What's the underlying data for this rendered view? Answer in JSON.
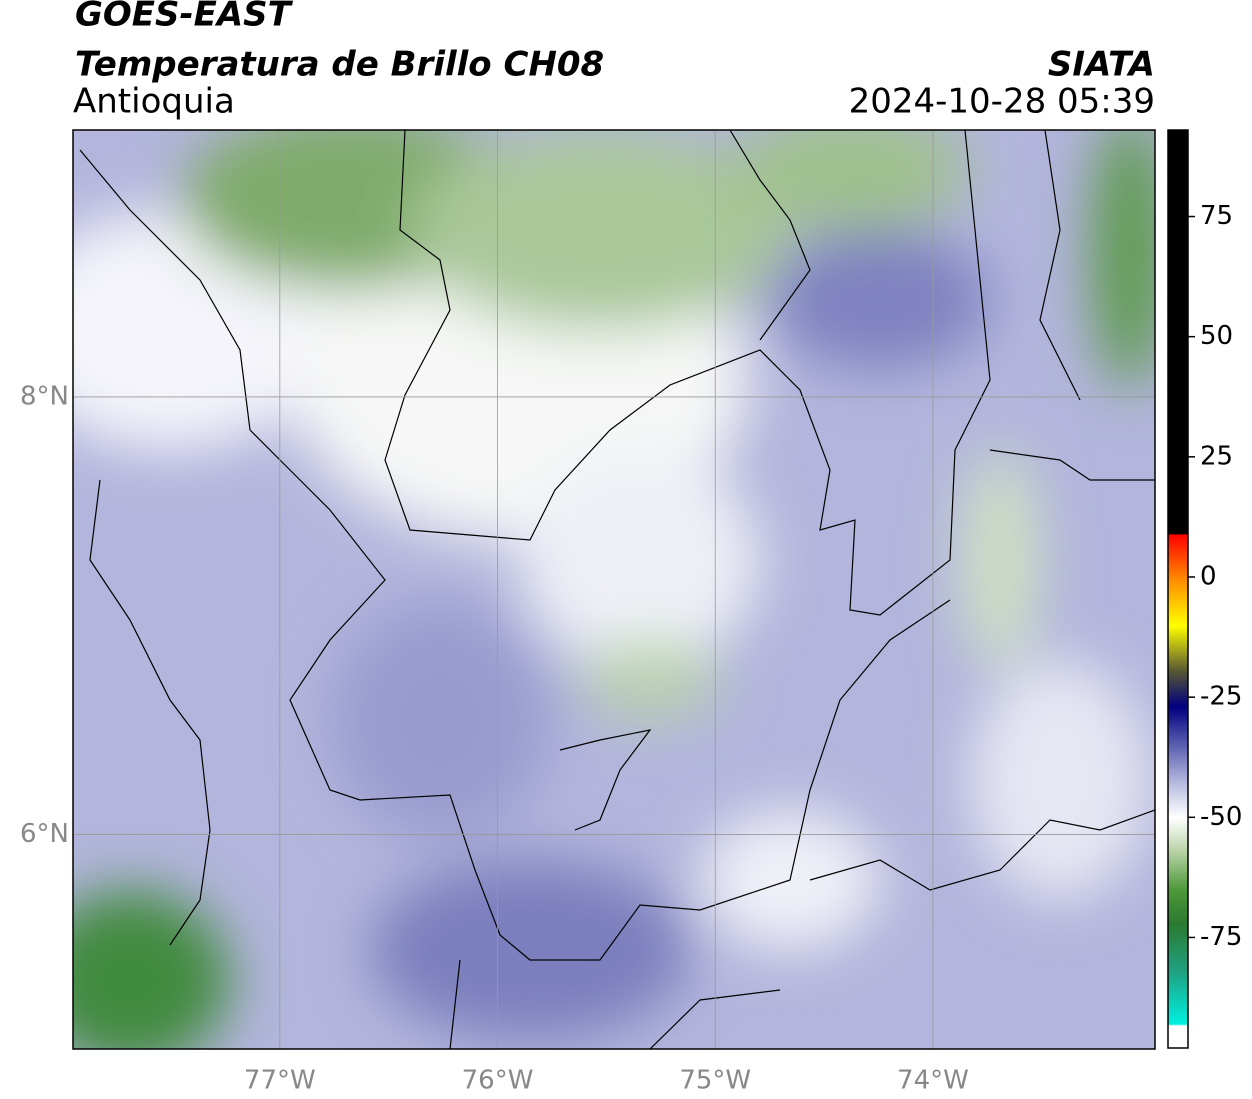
{
  "header": {
    "title": "GOES-EAST",
    "subtitle": "Temperatura de Brillo CH08",
    "region": "Antioquia",
    "source": "SIATA",
    "datetime": "2024-10-28 05:39"
  },
  "map": {
    "xlim": [
      -77.95,
      -72.98
    ],
    "ylim": [
      5.02,
      9.22
    ],
    "xticks": [
      {
        "value": -77,
        "label": "77°W"
      },
      {
        "value": -76,
        "label": "76°W"
      },
      {
        "value": -75,
        "label": "75°W"
      },
      {
        "value": -74,
        "label": "74°W"
      }
    ],
    "yticks": [
      {
        "value": 6,
        "label": "6°N"
      },
      {
        "value": 8,
        "label": "8°N"
      }
    ],
    "grid": true
  },
  "colorbar": {
    "lim": [
      -98,
      93
    ],
    "ticks": [
      -75,
      -50,
      -25,
      0,
      25,
      50,
      75
    ]
  }
}
